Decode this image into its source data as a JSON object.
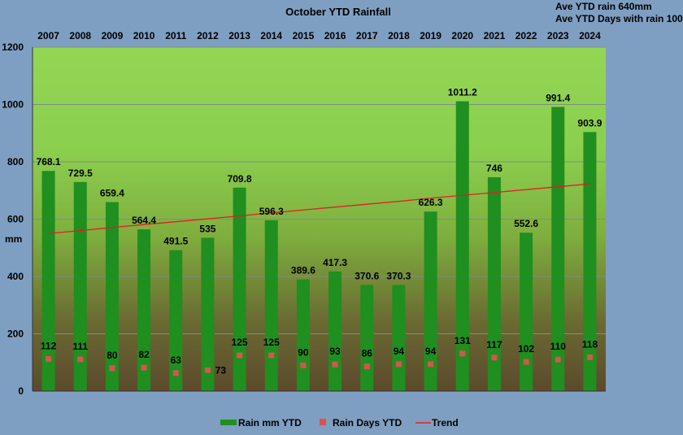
{
  "chart_data": {
    "type": "bar",
    "title": "October YTD Rainfall",
    "notes": [
      "Ave YTD rain 640mm",
      "Ave YTD Days with rain 100"
    ],
    "ylabel": "mm",
    "ylim": [
      0,
      1200
    ],
    "yticks": [
      0,
      200,
      400,
      600,
      800,
      1000,
      1200
    ],
    "grid": true,
    "legend_position": "bottom",
    "categories": [
      "2007",
      "2008",
      "2009",
      "2010",
      "2011",
      "2012",
      "2013",
      "2014",
      "2015",
      "2016",
      "2017",
      "2018",
      "2019",
      "2020",
      "2021",
      "2022",
      "2023",
      "2024"
    ],
    "series": [
      {
        "name": "Rain mm YTD",
        "type": "bar",
        "color": "#1f8f1f",
        "values": [
          768.1,
          729.5,
          659.4,
          564.4,
          491.5,
          535,
          709.8,
          596.3,
          389.6,
          417.3,
          370.6,
          370.3,
          626.3,
          1011.2,
          746,
          552.6,
          991.4,
          903.9
        ]
      },
      {
        "name": "Rain Days YTD",
        "type": "scatter",
        "color": "#d9534f",
        "values": [
          112,
          111,
          80,
          82,
          63,
          73,
          125,
          125,
          90,
          93,
          86,
          94,
          94,
          131,
          117,
          102,
          110,
          118
        ]
      },
      {
        "name": "Trend",
        "type": "line",
        "color": "#e02020",
        "values": [
          550,
          560,
          571,
          581,
          591,
          601,
          611,
          622,
          632,
          642,
          652,
          662,
          673,
          683,
          693,
          703,
          713,
          723
        ]
      }
    ]
  }
}
